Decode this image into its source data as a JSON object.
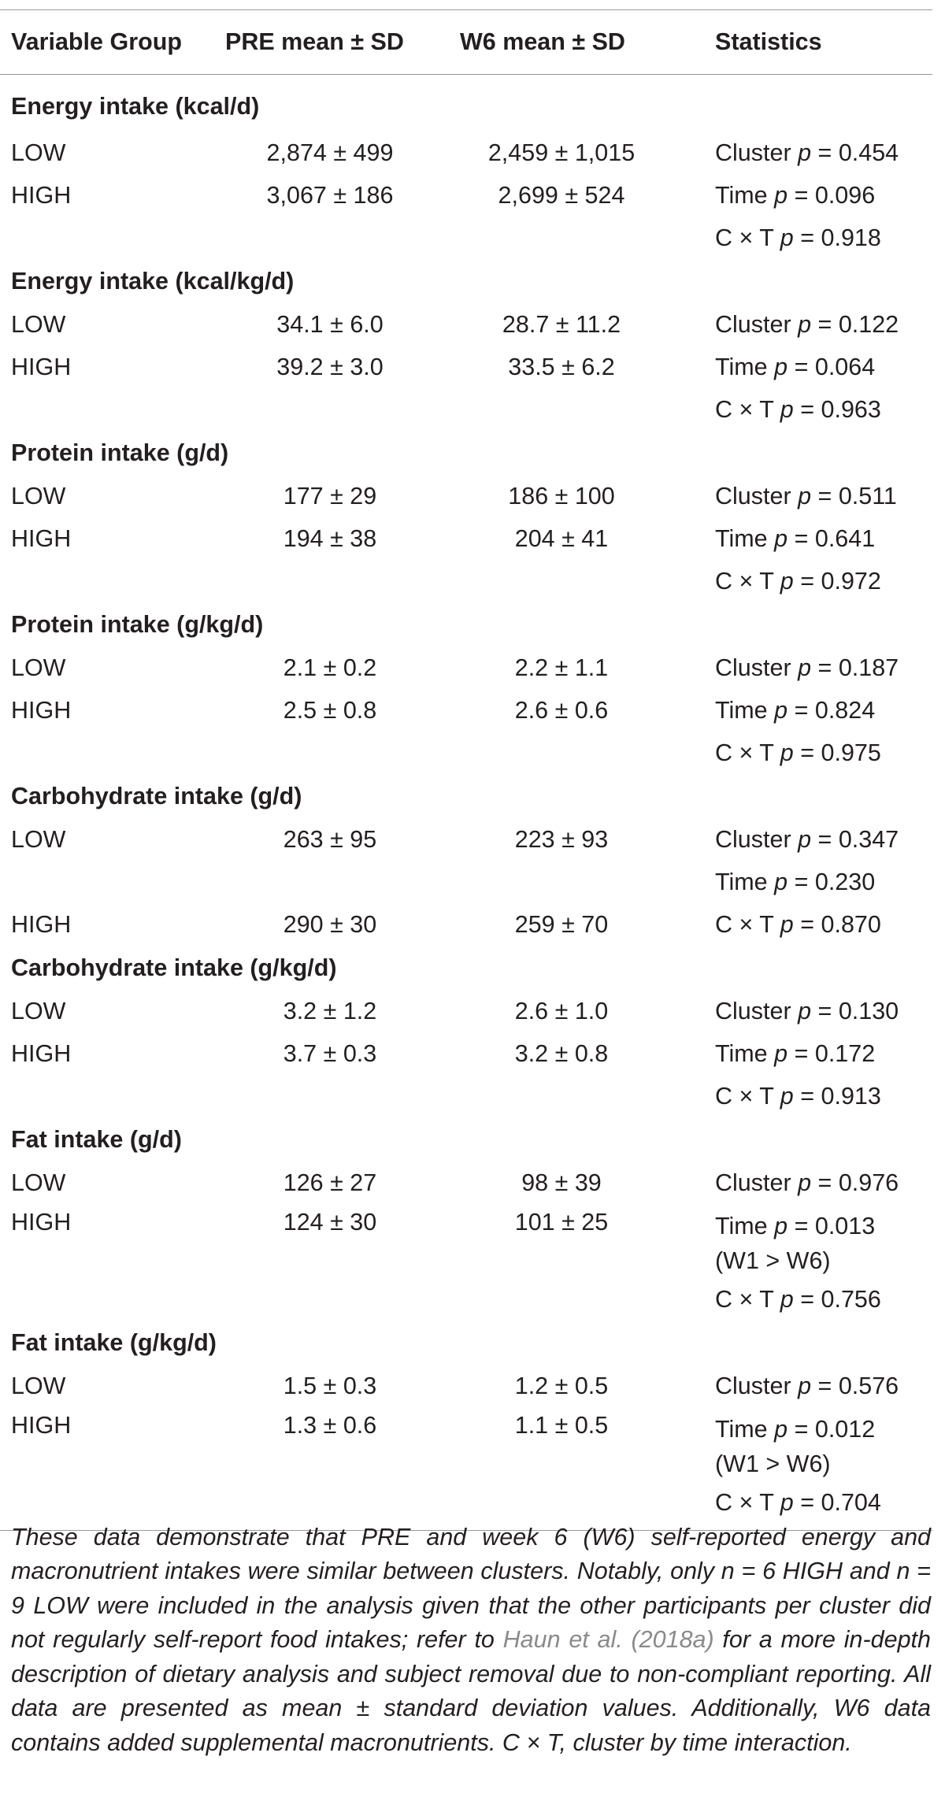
{
  "table": {
    "headers": [
      "Variable Group",
      "PRE mean ± SD",
      "W6 mean ± SD",
      "Statistics"
    ],
    "groups": [
      {
        "title": "Energy intake (kcal/d)",
        "rows": [
          {
            "group": "LOW",
            "pre": "2,874 ± 499",
            "w6": "2,459 ± 1,015",
            "stat": [
              "Cluster ",
              "p",
              " = 0.454"
            ]
          },
          {
            "group": "HIGH",
            "pre": "3,067 ± 186",
            "w6": "2,699 ± 524",
            "stat": [
              "Time ",
              "p",
              " = 0.096"
            ]
          },
          {
            "group": "",
            "pre": "",
            "w6": "",
            "stat": [
              "C × T ",
              "p",
              " = 0.918"
            ]
          }
        ]
      },
      {
        "title": "Energy intake (kcal/kg/d)",
        "rows": [
          {
            "group": "LOW",
            "pre": "34.1 ± 6.0",
            "w6": "28.7 ± 11.2",
            "stat": [
              "Cluster ",
              "p",
              " = 0.122"
            ]
          },
          {
            "group": "HIGH",
            "pre": "39.2 ± 3.0",
            "w6": "33.5 ± 6.2",
            "stat": [
              "Time ",
              "p",
              " = 0.064"
            ]
          },
          {
            "group": "",
            "pre": "",
            "w6": "",
            "stat": [
              "C × T ",
              "p",
              " = 0.963"
            ]
          }
        ]
      },
      {
        "title": "Protein intake (g/d)",
        "rows": [
          {
            "group": "LOW",
            "pre": "177 ± 29",
            "w6": "186 ± 100",
            "stat": [
              "Cluster ",
              "p",
              " = 0.511"
            ]
          },
          {
            "group": "HIGH",
            "pre": "194 ± 38",
            "w6": "204 ± 41",
            "stat": [
              "Time ",
              "p",
              " = 0.641"
            ]
          },
          {
            "group": "",
            "pre": "",
            "w6": "",
            "stat": [
              "C × T ",
              "p",
              " = 0.972"
            ]
          }
        ]
      },
      {
        "title": "Protein intake (g/kg/d)",
        "rows": [
          {
            "group": "LOW",
            "pre": "2.1 ± 0.2",
            "w6": "2.2 ± 1.1",
            "stat": [
              "Cluster ",
              "p",
              " = 0.187"
            ]
          },
          {
            "group": "HIGH",
            "pre": "2.5 ± 0.8",
            "w6": "2.6 ± 0.6",
            "stat": [
              "Time ",
              "p",
              " = 0.824"
            ]
          },
          {
            "group": "",
            "pre": "",
            "w6": "",
            "stat": [
              "C × T ",
              "p",
              " = 0.975"
            ]
          }
        ]
      },
      {
        "title": "Carbohydrate intake (g/d)",
        "rows": [
          {
            "group": "LOW",
            "pre": "263 ± 95",
            "w6": "223 ± 93",
            "stat": [
              "Cluster ",
              "p",
              " = 0.347"
            ]
          },
          {
            "group": "",
            "pre": "",
            "w6": "",
            "stat": [
              "Time ",
              "p",
              " = 0.230"
            ]
          },
          {
            "group": "HIGH",
            "pre": "290 ± 30",
            "w6": "259 ± 70",
            "stat": [
              "C × T ",
              "p",
              " = 0.870"
            ]
          }
        ]
      },
      {
        "title": "Carbohydrate intake (g/kg/d)",
        "rows": [
          {
            "group": "LOW",
            "pre": "3.2 ± 1.2",
            "w6": "2.6 ± 1.0",
            "stat": [
              "Cluster ",
              "p",
              " = 0.130"
            ]
          },
          {
            "group": "HIGH",
            "pre": "3.7 ± 0.3",
            "w6": "3.2 ± 0.8",
            "stat": [
              "Time ",
              "p",
              " = 0.172"
            ]
          },
          {
            "group": "",
            "pre": "",
            "w6": "",
            "stat": [
              "C × T ",
              "p",
              " = 0.913"
            ]
          }
        ]
      },
      {
        "title": "Fat intake (g/d)",
        "rows": [
          {
            "group": "LOW",
            "pre": "126 ± 27",
            "w6": "98 ± 39",
            "stat": [
              "Cluster ",
              "p",
              " = 0.976"
            ]
          },
          {
            "group": "HIGH",
            "pre": "124 ± 30",
            "w6": "101 ± 25",
            "stat": [
              "Time ",
              "p",
              " = 0.013"
            ],
            "stat_extra": "(W1 > W6)"
          },
          {
            "group": "",
            "pre": "",
            "w6": "",
            "stat": [
              "C × T ",
              "p",
              " = 0.756"
            ]
          }
        ]
      },
      {
        "title": "Fat intake (g/kg/d)",
        "rows": [
          {
            "group": "LOW",
            "pre": "1.5 ± 0.3",
            "w6": "1.2 ± 0.5",
            "stat": [
              "Cluster ",
              "p",
              " = 0.576"
            ]
          },
          {
            "group": "HIGH",
            "pre": "1.3 ± 0.6",
            "w6": "1.1 ± 0.5",
            "stat": [
              "Time ",
              "p",
              " = 0.012"
            ],
            "stat_extra": "(W1 > W6)"
          },
          {
            "group": "",
            "pre": "",
            "w6": "",
            "stat": [
              "C × T ",
              "p",
              " = 0.704"
            ]
          }
        ]
      }
    ]
  },
  "footnote": {
    "before_ref": "These data demonstrate that PRE and week 6 (W6) self-reported energy and macronutrient intakes were similar between clusters. Notably, only n = 6 HIGH and n = 9 LOW were included in the analysis given that the other participants per cluster did not regularly self-report food intakes; refer to ",
    "ref": "Haun et al. (2018a)",
    "after_ref": " for a more in-depth description of dietary analysis and subject removal due to non-compliant reporting. All data are presented as mean ± standard deviation values. Additionally, W6 data contains added supplemental macronutrients. C × T, cluster by time interaction."
  }
}
